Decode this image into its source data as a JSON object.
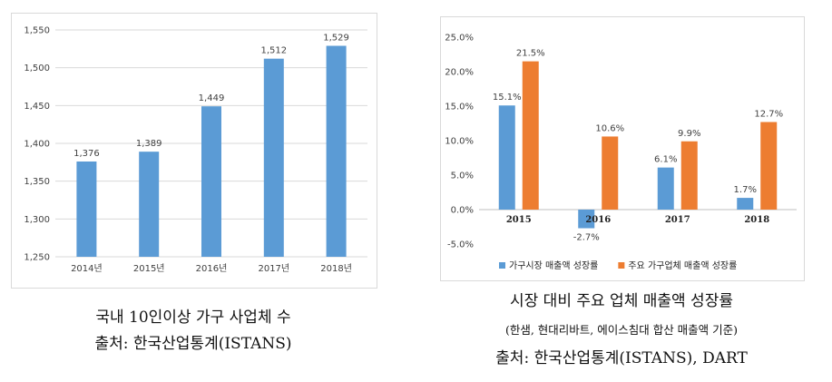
{
  "chart_data": [
    {
      "type": "bar",
      "categories": [
        "2014년",
        "2015년",
        "2016년",
        "2017년",
        "2018년"
      ],
      "values": [
        1376,
        1389,
        1449,
        1512,
        1529
      ],
      "value_labels": [
        "1,376",
        "1,389",
        "1,449",
        "1,512",
        "1,529"
      ],
      "y_ticks": [
        "1,250",
        "1,300",
        "1,350",
        "1,400",
        "1,450",
        "1,500",
        "1,550"
      ],
      "ylim": [
        1250,
        1550
      ],
      "grid": true,
      "colors": {
        "bar": "#5b9bd5",
        "grid": "#d9d9d9"
      }
    },
    {
      "type": "bar",
      "categories": [
        "2015",
        "2016",
        "2017",
        "2018"
      ],
      "series": [
        {
          "name": "가구시장 매출액 성장률",
          "values": [
            15.1,
            -2.7,
            6.1,
            1.7
          ],
          "value_labels": [
            "15.1%",
            "-2.7%",
            "6.1%",
            "1.7%"
          ],
          "color": "#5b9bd5"
        },
        {
          "name": "주요 가구업체 매출액 성장률",
          "values": [
            21.5,
            10.6,
            9.9,
            12.7
          ],
          "value_labels": [
            "21.5%",
            "10.6%",
            "9.9%",
            "12.7%"
          ],
          "color": "#ed7d31"
        }
      ],
      "y_ticks": [
        "-5.0%",
        "0.0%",
        "5.0%",
        "10.0%",
        "15.0%",
        "20.0%",
        "25.0%"
      ],
      "ylim": [
        -5,
        25
      ],
      "grid": false,
      "legend": "bottom"
    }
  ],
  "captions": {
    "left_line1": "국내 10인이상 가구 사업체 수",
    "left_line2": "출처: 한국산업통계(ISTANS)",
    "right_title": "시장 대비 주요 업체 매출액 성장률",
    "right_sub": "(한샘, 현대리바트, 에이스침대 합산 매출액 기준)",
    "right_source": "출처: 한국산업통계(ISTANS), DART"
  }
}
